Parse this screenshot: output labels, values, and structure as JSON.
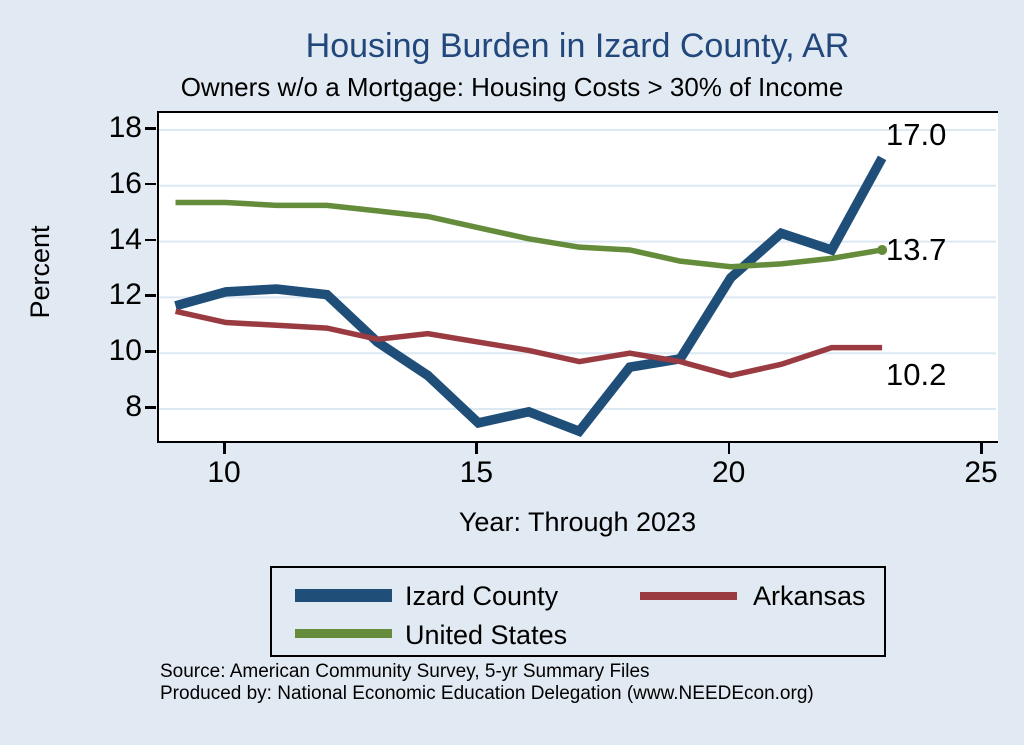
{
  "title": "Housing Burden in Izard County, AR",
  "subtitle": "Owners w/o a Mortgage: Housing Costs > 30% of Income",
  "y_axis": {
    "label": "Percent",
    "ticks": [
      8,
      10,
      12,
      14,
      16,
      18
    ]
  },
  "x_axis": {
    "label": "Year: Through 2023",
    "ticks": [
      10,
      15,
      20,
      25
    ]
  },
  "legend": {
    "items": [
      {
        "label": "Izard County",
        "series": "Izard County"
      },
      {
        "label": "Arkansas",
        "series": "Arkansas"
      },
      {
        "label": "United States",
        "series": "United States"
      }
    ]
  },
  "source_line1": "Source: American Community Survey, 5-yr Summary Files",
  "source_line2": "Produced by: National Economic Education Delegation (www.NEEDEcon.org)",
  "colors": {
    "izard_blue": "#1f4e79",
    "arkansas_red": "#9a3b41",
    "us_green": "#648c3a",
    "title_navy": "#21477c",
    "background": "#e1eaf2",
    "plot_background": "#ffffff",
    "gridline": "#dce8f2",
    "axis": "#000000"
  },
  "chart_data": {
    "type": "line",
    "x": [
      9,
      10,
      11,
      12,
      13,
      14,
      15,
      16,
      17,
      18,
      19,
      20,
      21,
      22,
      23
    ],
    "x_tick_labels": [
      "10",
      "15",
      "20",
      "25"
    ],
    "series": [
      {
        "name": "Izard County",
        "color": "#1f4e79",
        "emphasis": true,
        "end_marker": false,
        "values": [
          11.7,
          12.2,
          12.3,
          12.1,
          10.4,
          9.2,
          7.5,
          7.9,
          7.2,
          9.5,
          9.8,
          12.7,
          14.3,
          13.7,
          17.0
        ]
      },
      {
        "name": "Arkansas",
        "color": "#9a3b41",
        "emphasis": false,
        "end_marker": false,
        "values": [
          11.5,
          11.1,
          11.0,
          10.9,
          10.5,
          10.7,
          10.4,
          10.1,
          9.7,
          10.0,
          9.7,
          9.2,
          9.6,
          10.2,
          10.2
        ]
      },
      {
        "name": "United States",
        "color": "#648c3a",
        "emphasis": false,
        "end_marker": true,
        "values": [
          15.4,
          15.4,
          15.3,
          15.3,
          15.1,
          14.9,
          14.5,
          14.1,
          13.8,
          13.7,
          13.3,
          13.1,
          13.2,
          13.4,
          13.7
        ]
      }
    ],
    "end_labels": [
      "17.0",
      "13.7",
      "10.2"
    ],
    "title": "Housing Burden in Izard County, AR",
    "subtitle": "Owners w/o a Mortgage: Housing Costs > 30% of Income",
    "xlabel": "Year: Through 2023",
    "ylabel": "Percent",
    "xlim": [
      8.7,
      25.3
    ],
    "ylim": [
      6.7,
      18.6
    ],
    "grid": "horizontal"
  }
}
